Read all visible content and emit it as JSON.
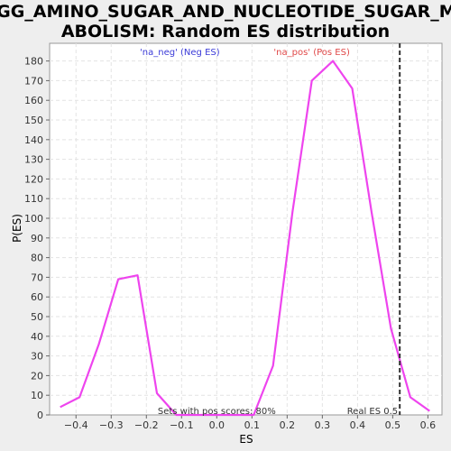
{
  "chart_data": {
    "type": "line",
    "title_line1": "KEGG_AMINO_SUGAR_AND_NUCLEOTIDE_SUGAR_MET",
    "title_line2": "ABOLISM: Random ES distribution",
    "xlabel": "ES",
    "ylabel": "P(ES)",
    "xlim": [
      -0.475,
      0.64
    ],
    "ylim": [
      0,
      189
    ],
    "xticks": [
      -0.4,
      -0.3,
      -0.2,
      -0.1,
      0.0,
      0.1,
      0.2,
      0.3,
      0.4,
      0.5,
      0.6
    ],
    "xtick_labels": [
      "−0.4",
      "−0.3",
      "−0.2",
      "−0.1",
      "0.0",
      "0.1",
      "0.2",
      "0.3",
      "0.4",
      "0.5",
      "0.6"
    ],
    "yticks": [
      0,
      10,
      20,
      30,
      40,
      50,
      60,
      70,
      80,
      90,
      100,
      110,
      120,
      130,
      140,
      150,
      160,
      170,
      180
    ],
    "grid": true,
    "line_color": "#ee44ee",
    "series": [
      {
        "x": [
          -0.445,
          -0.39,
          -0.335,
          -0.28,
          -0.225,
          -0.17,
          -0.115,
          -0.06,
          -0.005,
          0.05,
          0.105,
          0.16,
          0.215,
          0.27,
          0.33,
          0.385,
          0.44,
          0.495,
          0.55,
          0.605
        ],
        "y": [
          4,
          9,
          36,
          69,
          71,
          11,
          0,
          0,
          0,
          0,
          0,
          25,
          103,
          170,
          180,
          166,
          103,
          44,
          9,
          2
        ]
      }
    ],
    "real_es": 0.52,
    "real_es_label": "Real ES 0.5",
    "neg_label": "'na_neg' (Neg ES)",
    "pos_label": "'na_pos' (Pos ES)",
    "pos_scores_label": "Sets with pos scores: 80%"
  }
}
